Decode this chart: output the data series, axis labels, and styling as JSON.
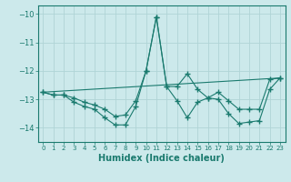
{
  "xlabel": "Humidex (Indice chaleur)",
  "ylabel": "",
  "xlim": [
    -0.5,
    23.5
  ],
  "ylim": [
    -14.5,
    -9.7
  ],
  "yticks": [
    -14,
    -13,
    -12,
    -11,
    -10
  ],
  "xticks": [
    0,
    1,
    2,
    3,
    4,
    5,
    6,
    7,
    8,
    9,
    10,
    11,
    12,
    13,
    14,
    15,
    16,
    17,
    18,
    19,
    20,
    21,
    22,
    23
  ],
  "line_color": "#1a7a6e",
  "bg_color": "#cce9eb",
  "grid_color": "#b0d4d6",
  "line1_x": [
    0,
    1,
    2,
    3,
    4,
    5,
    6,
    7,
    8,
    9,
    10,
    11,
    12,
    13,
    14,
    15,
    16,
    17,
    18,
    19,
    20,
    21,
    22,
    23
  ],
  "line1_y": [
    -12.75,
    -12.85,
    -12.85,
    -12.95,
    -13.1,
    -13.2,
    -13.35,
    -13.6,
    -13.55,
    -13.05,
    -12.0,
    -10.1,
    -12.55,
    -12.55,
    -12.1,
    -12.65,
    -12.95,
    -12.75,
    -13.05,
    -13.35,
    -13.35,
    -13.35,
    -12.3,
    -12.25
  ],
  "line2_x": [
    0,
    1,
    2,
    3,
    4,
    5,
    6,
    7,
    8,
    9,
    10,
    11,
    12,
    13,
    14,
    15,
    16,
    17,
    18,
    19,
    20,
    21,
    22,
    23
  ],
  "line2_y": [
    -12.75,
    -12.85,
    -12.85,
    -13.1,
    -13.25,
    -13.35,
    -13.65,
    -13.9,
    -13.9,
    -13.25,
    -12.0,
    -10.1,
    -12.55,
    -13.05,
    -13.65,
    -13.1,
    -12.95,
    -13.0,
    -13.5,
    -13.85,
    -13.8,
    -13.75,
    -12.65,
    -12.25
  ],
  "line3_x": [
    0,
    23
  ],
  "line3_y": [
    -12.75,
    -12.25
  ]
}
